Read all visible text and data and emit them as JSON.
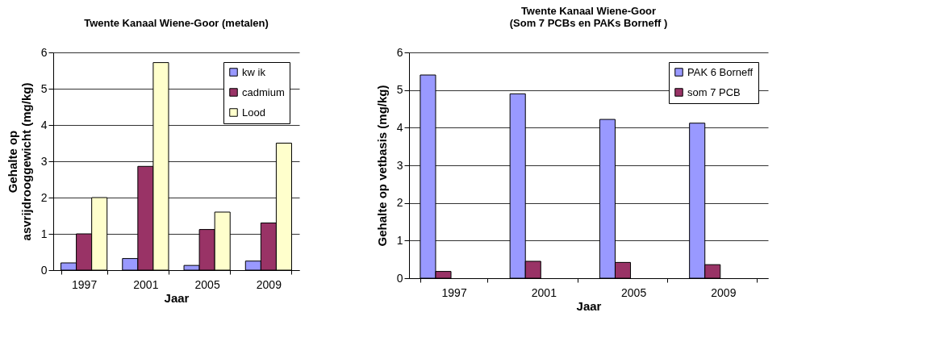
{
  "chart_data": [
    {
      "type": "bar",
      "title": "Twente Kanaal Wiene-Goor (metalen)",
      "xlabel": "Jaar",
      "ylabel": "Gehalte op\nasvrijdrooggewicht (mg/kg)",
      "categories": [
        "1997",
        "2001",
        "2005",
        "2009"
      ],
      "series": [
        {
          "name": "kw ik",
          "color": "#9999ff",
          "values": [
            0.2,
            0.32,
            0.13,
            0.25
          ]
        },
        {
          "name": "cadmium",
          "color": "#993366",
          "values": [
            1.0,
            2.86,
            1.12,
            1.3
          ]
        },
        {
          "name": "Lood",
          "color": "#ffffcc",
          "values": [
            2.0,
            5.72,
            1.6,
            3.5
          ]
        }
      ],
      "ylim": [
        0,
        6
      ],
      "yticks": [
        0,
        1,
        2,
        3,
        4,
        5,
        6
      ],
      "grid": "y",
      "legend": "top right"
    },
    {
      "type": "bar",
      "title": "Twente Kanaal Wiene-Goor\n(Som 7 PCBs en PAKs Borneff )",
      "xlabel": "Jaar",
      "ylabel": "Gehalte op vetbasis (mg/kg)",
      "categories": [
        "1997",
        "2001",
        "2005",
        "2009"
      ],
      "series": [
        {
          "name": "PAK 6 Borneff",
          "color": "#9999ff",
          "values": [
            5.4,
            4.9,
            4.22,
            4.12
          ]
        },
        {
          "name": "som 7 PCB",
          "color": "#993366",
          "values": [
            0.18,
            0.45,
            0.42,
            0.36
          ]
        }
      ],
      "ylim": [
        0,
        6
      ],
      "yticks": [
        0,
        1,
        2,
        3,
        4,
        5,
        6
      ],
      "grid": "y",
      "legend": "top right"
    }
  ]
}
